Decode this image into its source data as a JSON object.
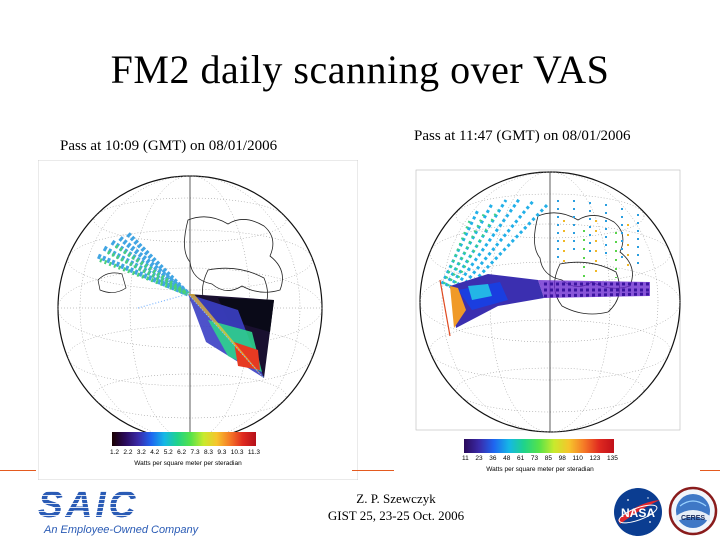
{
  "slide": {
    "title": "FM2 daily scanning over VAS"
  },
  "panels": [
    {
      "caption": "Pass at 10:09 (GMT) on 08/01/2006",
      "colorbar_ticks": [
        "1.2",
        "2.2",
        "3.2",
        "4.2",
        "5.2",
        "6.2",
        "7.3",
        "8.3",
        "9.3",
        "10.3",
        "11.3"
      ],
      "colorbar_label": "Watts per square meter per steradian"
    },
    {
      "caption": "Pass at 11:47 (GMT) on 08/01/2006",
      "colorbar_ticks": [
        "11",
        "23",
        "36",
        "48",
        "61",
        "73",
        "85",
        "98",
        "110",
        "123",
        "135"
      ],
      "colorbar_label": "Watts per square meter per steradian"
    }
  ],
  "footer": {
    "author": "Z. P. Szewczyk",
    "event": "GIST 25, 23-25 Oct. 2006"
  },
  "logos": {
    "saic_text": "SAIC",
    "saic_tagline": "An Employee-Owned Company",
    "nasa_text": "NASA",
    "ceres_text": "CERES"
  },
  "colors": {
    "accent_rule": "#e45a1f",
    "saic_blue": "#2a5bb5",
    "nasa_blue": "#0b3d91"
  }
}
